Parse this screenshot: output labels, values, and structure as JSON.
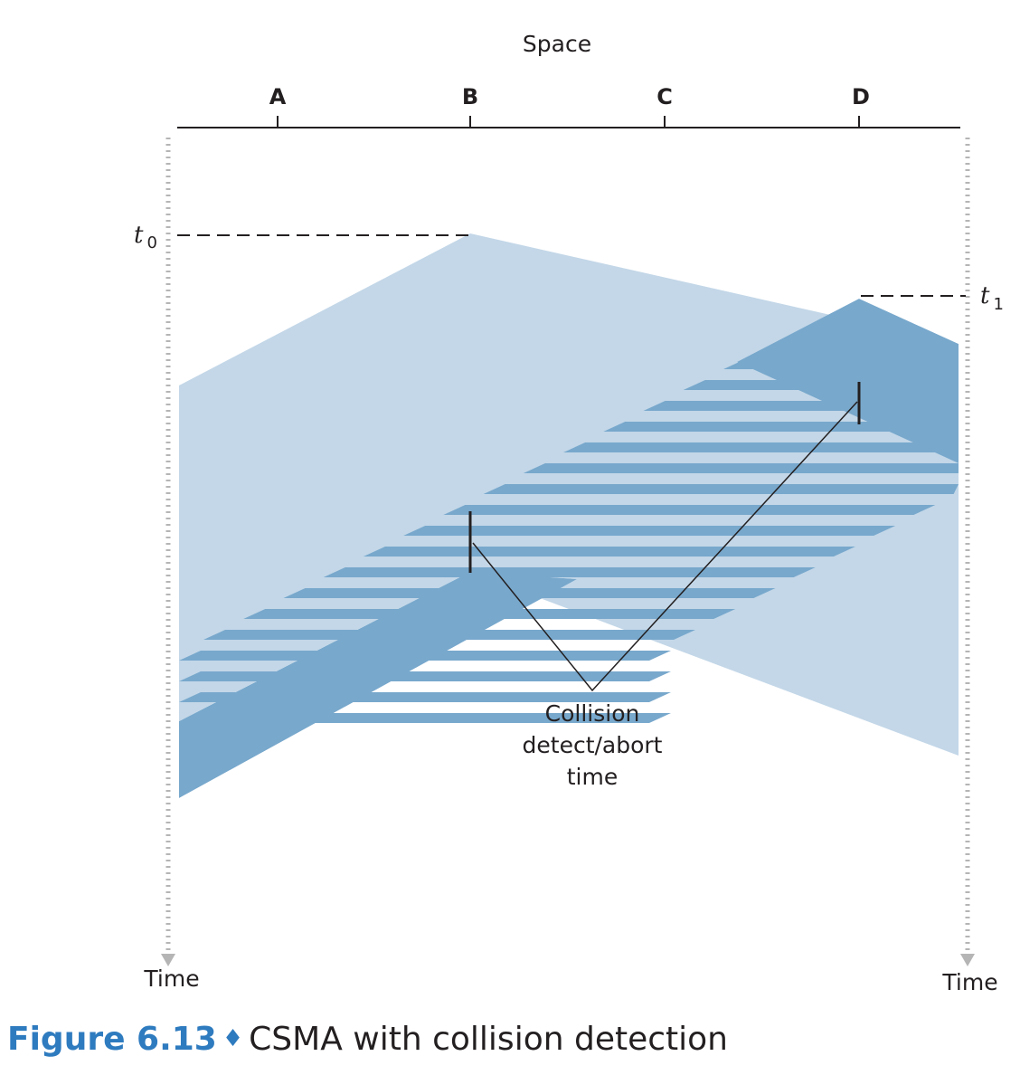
{
  "diagram": {
    "space_label": "Space",
    "stations": [
      "A",
      "B",
      "C",
      "D"
    ],
    "time_label_left": "Time",
    "time_label_right": "Time",
    "t0": {
      "letter": "t",
      "sub": "0"
    },
    "t1": {
      "letter": "t",
      "sub": "1"
    },
    "annotation": [
      "Collision",
      "detect/abort",
      "time"
    ]
  },
  "caption": {
    "figure": "Figure 6.13",
    "separator": "♦",
    "title": "CSMA with collision detection"
  },
  "colors": {
    "light_signal": "#c3d7e8",
    "dark_signal": "#78a8cc",
    "line": "#231f20",
    "dots": "#b5b5b5",
    "figure_blue": "#2e7bbf"
  }
}
